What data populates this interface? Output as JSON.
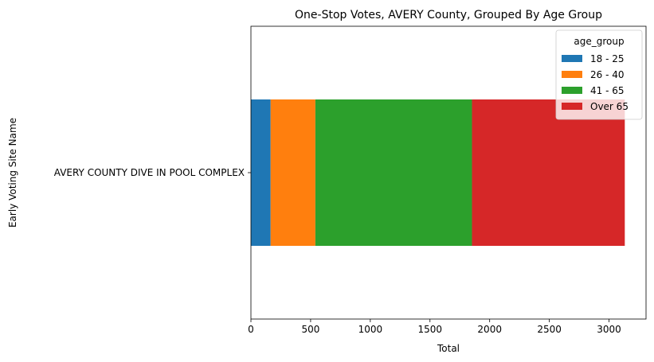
{
  "chart_data": {
    "type": "bar",
    "orientation": "horizontal",
    "stacked": true,
    "title": "One-Stop Votes, AVERY County, Grouped By Age Group",
    "xlabel": "Total",
    "ylabel": "Early Voting Site Name",
    "categories": [
      "AVERY COUNTY DIVE IN POOL COMPLEX"
    ],
    "xlim": [
      0,
      3310
    ],
    "xticks": [
      0,
      500,
      1000,
      1500,
      2000,
      2500,
      3000
    ],
    "grid": false,
    "legend": {
      "title": "age_group",
      "placement": "top-right"
    },
    "series": [
      {
        "name": "18 - 25",
        "color": "#1f77b4",
        "values": [
          165
        ]
      },
      {
        "name": "26 - 40",
        "color": "#ff7f0e",
        "values": [
          375
        ]
      },
      {
        "name": "41 - 65",
        "color": "#2ca02c",
        "values": [
          1312
        ]
      },
      {
        "name": "Over 65",
        "color": "#d62728",
        "values": [
          1280
        ]
      }
    ]
  }
}
